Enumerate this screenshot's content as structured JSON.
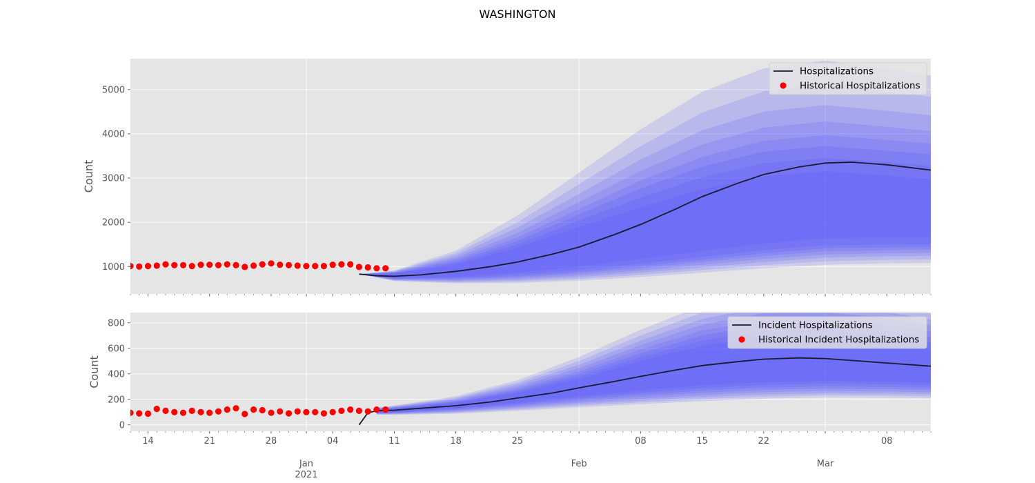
{
  "chart_data": [
    {
      "type": "line",
      "title": "WASHINGTON",
      "ylabel": "Count",
      "ylim": [
        380,
        5700
      ],
      "yticks": [
        1000,
        2000,
        3000,
        4000,
        5000
      ],
      "xlim": [
        "2020-12-12",
        "2021-03-13"
      ],
      "grid": true,
      "legend": "top-right",
      "series": [
        {
          "name": "Hospitalizations",
          "kind": "forecast-median",
          "color": "#1a1a2e",
          "x": [
            "2021-01-07",
            "2021-01-09",
            "2021-01-11",
            "2021-01-14",
            "2021-01-18",
            "2021-01-22",
            "2021-01-25",
            "2021-01-29",
            "2021-02-01",
            "2021-02-05",
            "2021-02-08",
            "2021-02-12",
            "2021-02-15",
            "2021-02-19",
            "2021-02-22",
            "2021-02-26",
            "2021-03-01",
            "2021-03-04",
            "2021-03-08",
            "2021-03-13"
          ],
          "values": [
            830,
            790,
            780,
            810,
            890,
            1000,
            1100,
            1280,
            1440,
            1720,
            1950,
            2300,
            2580,
            2880,
            3080,
            3250,
            3340,
            3360,
            3300,
            3180
          ]
        },
        {
          "name": "Historical Hospitalizations",
          "kind": "observed",
          "color": "#ff0000",
          "x": [
            "2020-12-12",
            "2020-12-13",
            "2020-12-14",
            "2020-12-15",
            "2020-12-16",
            "2020-12-17",
            "2020-12-18",
            "2020-12-19",
            "2020-12-20",
            "2020-12-21",
            "2020-12-22",
            "2020-12-23",
            "2020-12-24",
            "2020-12-25",
            "2020-12-26",
            "2020-12-27",
            "2020-12-28",
            "2020-12-29",
            "2020-12-30",
            "2020-12-31",
            "2021-01-01",
            "2021-01-02",
            "2021-01-03",
            "2021-01-04",
            "2021-01-05",
            "2021-01-06",
            "2021-01-07",
            "2021-01-08",
            "2021-01-09",
            "2021-01-10"
          ],
          "values": [
            1010,
            1000,
            1010,
            1020,
            1050,
            1030,
            1030,
            1010,
            1040,
            1040,
            1030,
            1050,
            1030,
            990,
            1020,
            1050,
            1070,
            1040,
            1030,
            1020,
            1010,
            1010,
            1010,
            1040,
            1050,
            1050,
            990,
            980,
            960,
            960
          ]
        }
      ],
      "bands": {
        "x": [
          "2021-01-07",
          "2021-01-11",
          "2021-01-18",
          "2021-01-25",
          "2021-02-01",
          "2021-02-08",
          "2021-02-15",
          "2021-02-22",
          "2021-03-01",
          "2021-03-08",
          "2021-03-13"
        ],
        "levels": [
          {
            "low": [
              830,
              740,
              770,
              870,
              1000,
              1170,
              1350,
              1520,
              1640,
              1660,
              1670
            ],
            "high": [
              830,
              840,
              1040,
              1420,
              1900,
              2340,
              2750,
              3040,
              3150,
              3060,
              2980
            ]
          },
          {
            "low": [
              830,
              730,
              740,
              820,
              930,
              1060,
              1220,
              1370,
              1480,
              1500,
              1500
            ],
            "high": [
              830,
              850,
              1080,
              1500,
              2040,
              2560,
              3020,
              3340,
              3450,
              3360,
              3280
            ]
          },
          {
            "low": [
              830,
              720,
              720,
              780,
              880,
              1010,
              1150,
              1300,
              1410,
              1430,
              1440
            ],
            "high": [
              830,
              860,
              1120,
              1580,
              2180,
              2760,
              3260,
              3600,
              3720,
              3620,
              3540
            ]
          },
          {
            "low": [
              830,
              710,
              700,
              750,
              840,
              960,
              1100,
              1240,
              1340,
              1370,
              1380
            ],
            "high": [
              830,
              870,
              1160,
              1660,
              2300,
              2940,
              3480,
              3840,
              3970,
              3860,
              3780
            ]
          },
          {
            "low": [
              830,
              700,
              680,
              720,
              800,
              910,
              1040,
              1170,
              1270,
              1300,
              1310
            ],
            "high": [
              830,
              880,
              1200,
              1760,
              2460,
              3160,
              3760,
              4140,
              4280,
              4160,
              4060
            ]
          },
          {
            "low": [
              830,
              690,
              660,
              690,
              760,
              860,
              980,
              1100,
              1200,
              1230,
              1240
            ],
            "high": [
              830,
              890,
              1250,
              1880,
              2640,
              3420,
              4080,
              4500,
              4650,
              4520,
              4420
            ]
          },
          {
            "low": [
              830,
              680,
              640,
              660,
              720,
              810,
              920,
              1030,
              1120,
              1150,
              1160
            ],
            "high": [
              830,
              900,
              1300,
              2000,
              2860,
              3720,
              4480,
              4960,
              5120,
              4960,
              4840
            ]
          },
          {
            "low": [
              830,
              670,
              620,
              630,
              680,
              760,
              860,
              960,
              1040,
              1070,
              1080
            ],
            "high": [
              830,
              910,
              1360,
              2150,
              3120,
              4100,
              4950,
              5480,
              5660,
              5480,
              5320
            ]
          }
        ]
      },
      "band_color": "#4040ff",
      "legend_entries": [
        "Hospitalizations",
        "Historical Hospitalizations"
      ]
    },
    {
      "type": "line",
      "ylabel": "Count",
      "ylim": [
        -50,
        880
      ],
      "yticks": [
        0,
        200,
        400,
        600,
        800
      ],
      "xlim": [
        "2020-12-12",
        "2021-03-13"
      ],
      "grid": true,
      "legend": "top-right",
      "series": [
        {
          "name": "Incident Hospitalizations",
          "kind": "forecast-median",
          "color": "#1a1a2e",
          "x": [
            "2021-01-07",
            "2021-01-08",
            "2021-01-09",
            "2021-01-11",
            "2021-01-14",
            "2021-01-18",
            "2021-01-22",
            "2021-01-25",
            "2021-01-29",
            "2021-02-01",
            "2021-02-05",
            "2021-02-08",
            "2021-02-12",
            "2021-02-15",
            "2021-02-19",
            "2021-02-22",
            "2021-02-26",
            "2021-03-01",
            "2021-03-04",
            "2021-03-08",
            "2021-03-13"
          ],
          "values": [
            0,
            95,
            110,
            115,
            130,
            150,
            180,
            210,
            250,
            290,
            340,
            380,
            430,
            465,
            495,
            515,
            525,
            520,
            505,
            485,
            460
          ]
        },
        {
          "name": "Historical Incident Hospitalizations",
          "kind": "observed",
          "color": "#ff0000",
          "x": [
            "2020-12-12",
            "2020-12-13",
            "2020-12-14",
            "2020-12-15",
            "2020-12-16",
            "2020-12-17",
            "2020-12-18",
            "2020-12-19",
            "2020-12-20",
            "2020-12-21",
            "2020-12-22",
            "2020-12-23",
            "2020-12-24",
            "2020-12-25",
            "2020-12-26",
            "2020-12-27",
            "2020-12-28",
            "2020-12-29",
            "2020-12-30",
            "2020-12-31",
            "2021-01-01",
            "2021-01-02",
            "2021-01-03",
            "2021-01-04",
            "2021-01-05",
            "2021-01-06",
            "2021-01-07",
            "2021-01-08",
            "2021-01-09",
            "2021-01-10"
          ],
          "values": [
            95,
            90,
            88,
            125,
            110,
            100,
            95,
            110,
            100,
            95,
            105,
            120,
            130,
            85,
            120,
            115,
            95,
            105,
            90,
            105,
            100,
            100,
            90,
            100,
            110,
            120,
            110,
            105,
            120,
            120
          ]
        }
      ],
      "bands": {
        "x": [
          "2021-01-09",
          "2021-01-11",
          "2021-01-18",
          "2021-01-25",
          "2021-02-01",
          "2021-02-08",
          "2021-02-15",
          "2021-02-22",
          "2021-03-01",
          "2021-03-08",
          "2021-03-13"
        ],
        "levels": [
          {
            "low": [
              95,
              100,
              130,
              175,
              225,
              270,
              310,
              335,
              345,
              340,
              330
            ],
            "high": [
              120,
              128,
              172,
              250,
              360,
              500,
              620,
              690,
              700,
              650,
              600
            ]
          },
          {
            "low": [
              93,
              97,
              124,
              165,
              210,
              252,
              288,
              312,
              322,
              318,
              308
            ],
            "high": [
              122,
              131,
              178,
              262,
              380,
              530,
              660,
              735,
              745,
              695,
              645
            ]
          },
          {
            "low": [
              91,
              94,
              118,
              156,
              198,
              236,
              270,
              292,
              302,
              298,
              290
            ],
            "high": [
              124,
              134,
              184,
              274,
              400,
              560,
              700,
              780,
              790,
              740,
              690
            ]
          },
          {
            "low": [
              89,
              91,
              112,
              147,
              186,
              220,
              252,
              274,
              284,
              280,
              272
            ],
            "high": [
              126,
              137,
              190,
              286,
              420,
              590,
              740,
              825,
              835,
              785,
              735
            ]
          },
          {
            "low": [
              87,
              88,
              106,
              138,
              174,
              204,
              234,
              256,
              266,
              262,
              256
            ],
            "high": [
              128,
              140,
              198,
              300,
              445,
              625,
              785,
              875,
              885,
              835,
              780
            ]
          },
          {
            "low": [
              85,
              85,
              100,
              129,
              162,
              190,
              218,
              238,
              248,
              246,
              240
            ],
            "high": [
              130,
              144,
              206,
              316,
              470,
              660,
              830,
              925,
              935,
              885,
              825
            ]
          },
          {
            "low": [
              83,
              82,
              95,
              120,
              150,
              176,
              202,
              222,
              232,
              230,
              224
            ],
            "high": [
              132,
              148,
              214,
              332,
              500,
              700,
              880,
              980,
              990,
              935,
              870
            ]
          },
          {
            "low": [
              80,
              78,
              88,
              110,
              137,
              162,
              186,
              205,
              215,
              213,
              208
            ],
            "high": [
              135,
              152,
              224,
              350,
              532,
              745,
              935,
              1040,
              1050,
              990,
              920
            ]
          }
        ]
      },
      "band_color": "#4040ff",
      "legend_entries": [
        "Incident Hospitalizations",
        "Historical Incident Hospitalizations"
      ]
    }
  ],
  "x_axis": {
    "day_ticks": [
      {
        "date": "2020-12-14",
        "label": "14"
      },
      {
        "date": "2020-12-21",
        "label": "21"
      },
      {
        "date": "2020-12-28",
        "label": "28"
      },
      {
        "date": "2021-01-04",
        "label": "04"
      },
      {
        "date": "2021-01-11",
        "label": "11"
      },
      {
        "date": "2021-01-18",
        "label": "18"
      },
      {
        "date": "2021-01-25",
        "label": "25"
      },
      {
        "date": "2021-02-08",
        "label": "08"
      },
      {
        "date": "2021-02-15",
        "label": "15"
      },
      {
        "date": "2021-02-22",
        "label": "22"
      },
      {
        "date": "2021-03-08",
        "label": "08"
      }
    ],
    "month_ticks": [
      {
        "date": "2021-01-01",
        "label": "Jan",
        "sublabel": "2021"
      },
      {
        "date": "2021-02-01",
        "label": "Feb",
        "sublabel": ""
      },
      {
        "date": "2021-03-01",
        "label": "Mar",
        "sublabel": ""
      }
    ]
  },
  "colors": {
    "panel_bg": "#e5e5e5",
    "grid": "#ffffff",
    "tick_text": "#555555"
  }
}
